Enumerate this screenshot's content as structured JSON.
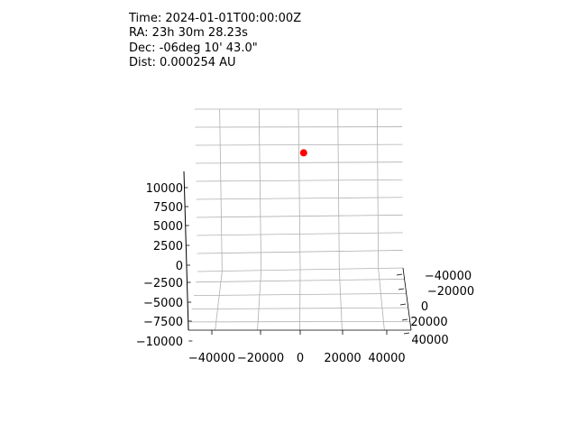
{
  "readout": {
    "time": "Time: 2024-01-01T00:00:00Z",
    "ra": "RA: 23h 30m 28.23s",
    "dec": "Dec: -06deg 10' 43.0\"",
    "dist": "Dist: 0.000254 AU"
  },
  "chart_data": {
    "type": "scatter",
    "title": "",
    "xlabel": "",
    "ylabel": "",
    "zlabel": "",
    "x_ticks": [
      "−40000",
      "−20000",
      "0",
      "20000",
      "40000"
    ],
    "y_ticks": [
      "−40000",
      "−20000",
      "0",
      "20000",
      "40000"
    ],
    "z_ticks": [
      "−10000",
      "−7500",
      "−5000",
      "−2500",
      "0",
      "2500",
      "5000",
      "7500",
      "10000"
    ],
    "xlim": [
      -50000,
      50000
    ],
    "ylim": [
      -50000,
      50000
    ],
    "zlim": [
      -10000,
      12000
    ],
    "grid": true,
    "points": [
      {
        "x": 0,
        "y": 0,
        "z": 8000
      }
    ],
    "marker_color": "#ff0000"
  }
}
